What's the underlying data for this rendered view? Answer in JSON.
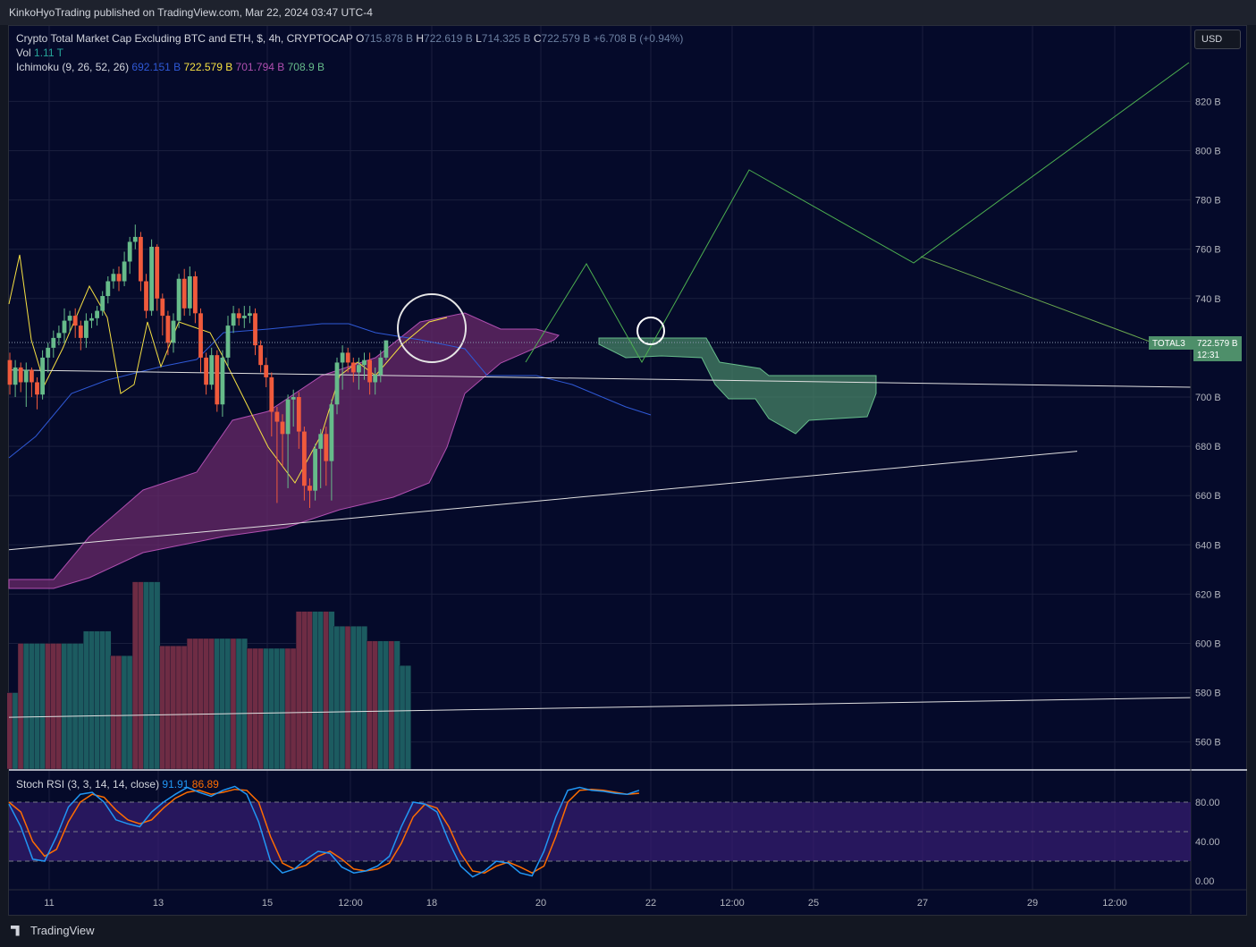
{
  "header": {
    "published_line": "KinkoHyoTrading published on TradingView.com, Mar 22, 2024 03:47 UTC-4"
  },
  "legend": {
    "symbol_title": "Crypto Total Market Cap Excluding BTC and ETH, $, 4h, CRYPTOCAP",
    "open_label": "O",
    "open_value": "715.878 B",
    "high_label": "H",
    "high_value": "722.619 B",
    "low_label": "L",
    "low_value": "714.325 B",
    "close_label": "C",
    "close_value": "722.579 B",
    "change": "+6.708 B (+0.94%)",
    "vol_label": "Vol",
    "vol_value": "1.11 T",
    "ichimoku_label": "Ichimoku (9, 26, 52, 26)",
    "ichimoku_v1": "692.151 B",
    "ichimoku_v2": "722.579 B",
    "ichimoku_v3": "701.794 B",
    "ichimoku_v4": "708.9 B",
    "stoch_label": "Stoch RSI (3, 3, 14, 14, close)",
    "stoch_k": "91.91",
    "stoch_d": "86.89"
  },
  "currency_button": "USD",
  "price_tag": {
    "symbol": "TOTAL3",
    "price": "722.579 B",
    "countdown": "12:31"
  },
  "footer": {
    "brand": "TradingView"
  },
  "colors": {
    "background": "#050a2a",
    "bull": "#66bb8a",
    "bear": "#f05a3c",
    "tenkan": "#f5e042",
    "kijun": "#2f59d6",
    "cloud_bear": "#6a2a6a",
    "cloud_bull": "#4a8a6a",
    "stoch_k": "#2196f3",
    "stoch_d": "#ff6d00",
    "projection": "#4caf50"
  },
  "chart_data": {
    "type": "candlestick",
    "price_axis": {
      "ticks": [
        "820 B",
        "800 B",
        "780 B",
        "760 B",
        "740 B",
        "720 B",
        "700 B",
        "680 B",
        "660 B",
        "640 B",
        "620 B",
        "600 B",
        "580 B",
        "560 B"
      ],
      "tick_values": [
        820,
        800,
        780,
        760,
        740,
        720,
        700,
        680,
        660,
        640,
        620,
        600,
        580,
        560
      ]
    },
    "time_axis": {
      "ticks": [
        "11",
        "13",
        "15",
        "12:00",
        "18",
        "20",
        "22",
        "12:00",
        "25",
        "27",
        "29",
        "12:00"
      ]
    },
    "candles": [
      [
        715,
        705,
        718,
        701
      ],
      [
        705,
        712,
        715,
        700
      ],
      [
        712,
        706,
        714,
        702
      ],
      [
        706,
        711,
        714,
        696
      ],
      [
        711,
        706,
        712,
        700
      ],
      [
        706,
        701,
        708,
        695
      ],
      [
        701,
        716,
        719,
        699
      ],
      [
        716,
        720,
        722,
        710
      ],
      [
        720,
        724,
        727,
        716
      ],
      [
        724,
        726,
        729,
        721
      ],
      [
        726,
        731,
        736,
        722
      ],
      [
        731,
        733,
        735,
        726
      ],
      [
        733,
        729,
        736,
        724
      ],
      [
        729,
        724,
        731,
        719
      ],
      [
        724,
        731,
        734,
        720
      ],
      [
        731,
        732,
        734,
        728
      ],
      [
        732,
        735,
        737,
        729
      ],
      [
        735,
        741,
        743,
        733
      ],
      [
        741,
        747,
        749,
        738
      ],
      [
        747,
        750,
        752,
        744
      ],
      [
        750,
        747,
        753,
        743
      ],
      [
        747,
        755,
        759,
        745
      ],
      [
        755,
        763,
        765,
        750
      ],
      [
        763,
        765,
        770,
        760
      ],
      [
        765,
        747,
        767,
        743
      ],
      [
        747,
        735,
        750,
        732
      ],
      [
        735,
        761,
        764,
        733
      ],
      [
        761,
        740,
        762,
        735
      ],
      [
        740,
        733,
        742,
        725
      ],
      [
        733,
        722,
        735,
        717
      ],
      [
        722,
        731,
        734,
        718
      ],
      [
        731,
        748,
        750,
        728
      ],
      [
        748,
        736,
        752,
        733
      ],
      [
        736,
        749,
        753,
        733
      ],
      [
        749,
        734,
        751,
        730
      ],
      [
        734,
        716,
        736,
        710
      ],
      [
        716,
        705,
        718,
        701
      ],
      [
        705,
        717,
        720,
        703
      ],
      [
        717,
        697,
        719,
        694
      ],
      [
        697,
        716,
        719,
        692
      ],
      [
        716,
        729,
        733,
        712
      ],
      [
        729,
        734,
        737,
        726
      ],
      [
        734,
        732,
        736,
        729
      ],
      [
        732,
        733,
        737,
        728
      ],
      [
        733,
        734,
        737,
        730
      ],
      [
        734,
        721,
        736,
        717
      ],
      [
        721,
        713,
        723,
        710
      ],
      [
        713,
        708,
        716,
        704
      ],
      [
        708,
        694,
        710,
        684
      ],
      [
        694,
        690,
        696,
        657
      ],
      [
        690,
        685,
        693,
        672
      ],
      [
        685,
        699,
        701,
        663
      ],
      [
        699,
        700,
        703,
        688
      ],
      [
        700,
        686,
        702,
        679
      ],
      [
        686,
        664,
        688,
        658
      ],
      [
        664,
        662,
        667,
        655
      ],
      [
        662,
        679,
        681,
        658
      ],
      [
        679,
        685,
        687,
        663
      ],
      [
        685,
        674,
        688,
        664
      ],
      [
        674,
        697,
        699,
        658
      ],
      [
        697,
        714,
        716,
        693
      ],
      [
        714,
        718,
        721,
        703
      ],
      [
        718,
        714,
        720,
        710
      ],
      [
        714,
        710,
        716,
        706
      ],
      [
        710,
        713,
        716,
        703
      ],
      [
        713,
        715,
        718,
        707
      ],
      [
        715,
        706,
        718,
        701
      ],
      [
        706,
        709,
        712,
        701
      ],
      [
        709,
        716,
        719,
        706
      ],
      [
        716,
        723,
        723,
        715
      ]
    ],
    "volume_bars": [
      [
        580,
        "bear"
      ],
      [
        580,
        "teal"
      ],
      [
        600,
        "bear"
      ],
      [
        600,
        "teal"
      ],
      [
        600,
        "teal"
      ],
      [
        600,
        "teal"
      ],
      [
        600,
        "teal"
      ],
      [
        600,
        "bear"
      ],
      [
        600,
        "bear"
      ],
      [
        600,
        "bear"
      ],
      [
        600,
        "teal"
      ],
      [
        600,
        "teal"
      ],
      [
        600,
        "teal"
      ],
      [
        600,
        "teal"
      ],
      [
        605,
        "teal"
      ],
      [
        605,
        "teal"
      ],
      [
        605,
        "teal"
      ],
      [
        605,
        "teal"
      ],
      [
        605,
        "teal"
      ],
      [
        595,
        "bear"
      ],
      [
        595,
        "bear"
      ],
      [
        595,
        "teal"
      ],
      [
        595,
        "teal"
      ],
      [
        625,
        "bear"
      ],
      [
        625,
        "bear"
      ],
      [
        625,
        "teal"
      ],
      [
        625,
        "teal"
      ],
      [
        625,
        "teal"
      ],
      [
        599,
        "bear"
      ],
      [
        599,
        "bear"
      ],
      [
        599,
        "bear"
      ],
      [
        599,
        "bear"
      ],
      [
        599,
        "bear"
      ],
      [
        602,
        "bear"
      ],
      [
        602,
        "bear"
      ],
      [
        602,
        "bear"
      ],
      [
        602,
        "bear"
      ],
      [
        602,
        "bear"
      ],
      [
        602,
        "teal"
      ],
      [
        602,
        "teal"
      ],
      [
        602,
        "teal"
      ],
      [
        602,
        "bear"
      ],
      [
        602,
        "teal"
      ],
      [
        602,
        "teal"
      ],
      [
        598,
        "bear"
      ],
      [
        598,
        "bear"
      ],
      [
        598,
        "bear"
      ],
      [
        598,
        "teal"
      ],
      [
        598,
        "teal"
      ],
      [
        598,
        "teal"
      ],
      [
        598,
        "teal"
      ],
      [
        598,
        "bear"
      ],
      [
        598,
        "bear"
      ],
      [
        613,
        "bear"
      ],
      [
        613,
        "bear"
      ],
      [
        613,
        "bear"
      ],
      [
        613,
        "teal"
      ],
      [
        613,
        "teal"
      ],
      [
        613,
        "bear"
      ],
      [
        613,
        "teal"
      ],
      [
        607,
        "teal"
      ],
      [
        607,
        "teal"
      ],
      [
        607,
        "bear"
      ],
      [
        607,
        "teal"
      ],
      [
        607,
        "teal"
      ],
      [
        607,
        "teal"
      ],
      [
        601,
        "bear"
      ],
      [
        601,
        "bear"
      ],
      [
        601,
        "teal"
      ],
      [
        601,
        "teal"
      ],
      [
        601,
        "bear"
      ],
      [
        601,
        "teal"
      ],
      [
        591,
        "teal"
      ],
      [
        591,
        "teal"
      ]
    ],
    "stoch_axis": {
      "ticks": [
        "80.00",
        "40.00",
        "0.00"
      ],
      "tick_values": [
        80,
        40,
        0
      ]
    },
    "stoch_k": [
      78,
      55,
      22,
      20,
      45,
      75,
      88,
      90,
      80,
      62,
      58,
      55,
      70,
      80,
      88,
      95,
      90,
      86,
      92,
      96,
      88,
      60,
      20,
      8,
      12,
      22,
      30,
      28,
      14,
      8,
      10,
      15,
      25,
      55,
      80,
      78,
      70,
      40,
      15,
      4,
      10,
      20,
      18,
      8,
      5,
      30,
      65,
      92,
      95,
      92,
      91,
      89,
      88,
      92
    ],
    "stoch_d": [
      80,
      70,
      40,
      25,
      32,
      60,
      80,
      88,
      85,
      72,
      62,
      58,
      62,
      74,
      84,
      90,
      92,
      88,
      90,
      93,
      92,
      80,
      45,
      18,
      12,
      16,
      25,
      30,
      22,
      12,
      10,
      12,
      18,
      38,
      65,
      78,
      74,
      55,
      28,
      10,
      8,
      15,
      19,
      14,
      8,
      15,
      45,
      80,
      92,
      93,
      92,
      90,
      88,
      89
    ],
    "projection_path": [
      [
        560,
        720
      ],
      [
        600,
        755
      ],
      [
        640,
        720
      ],
      [
        680,
        722
      ],
      [
        745,
        792
      ],
      [
        820,
        755
      ],
      [
        905,
        820
      ]
    ],
    "trendlines": [
      {
        "from": [
          0,
          638
        ],
        "to": [
          680,
          678
        ]
      },
      {
        "from": [
          0,
          711
        ],
        "to": [
          907,
          704
        ]
      },
      {
        "from": [
          770,
          757
        ],
        "to": [
          855,
          722
        ]
      },
      {
        "from": [
          0,
          570
        ],
        "to": [
          907,
          578
        ]
      }
    ]
  }
}
